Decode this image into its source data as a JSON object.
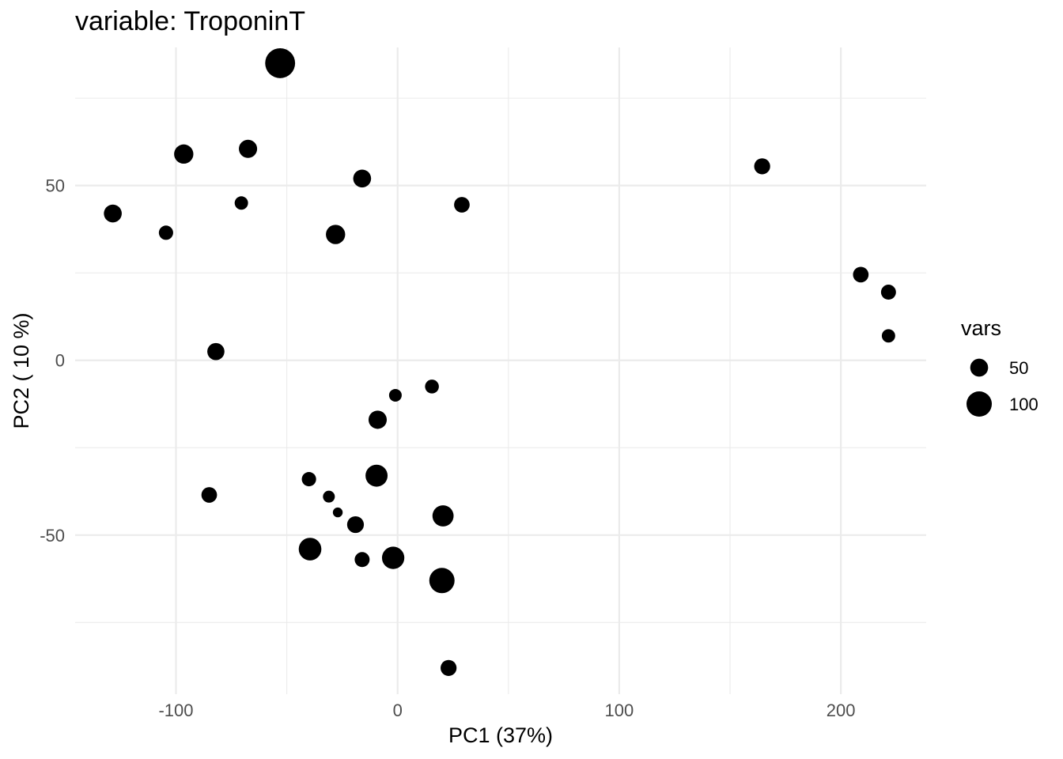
{
  "chart_data": {
    "type": "scatter",
    "title": "variable: TroponinT",
    "xlabel": "PC1 (37%)",
    "ylabel": "PC2 ( 10 %)",
    "xlim": [
      -145.5,
      238.5
    ],
    "ylim": [
      -95.5,
      89.5
    ],
    "x_ticks": [
      -100,
      0,
      100,
      200
    ],
    "x_tick_labels": [
      "-100",
      "0",
      "100",
      "200"
    ],
    "x_minor_ticks": [
      -50,
      50,
      150
    ],
    "y_ticks": [
      -50,
      0,
      50
    ],
    "y_tick_labels": [
      "-50",
      "0",
      "50"
    ],
    "y_minor_ticks": [
      -75,
      -25,
      25,
      75
    ],
    "grid": true,
    "point_color": "#000000",
    "size_variable": "vars",
    "legend": {
      "title": "vars",
      "position": "right",
      "entries": [
        {
          "label": "50",
          "value": 50
        },
        {
          "label": "100",
          "value": 100
        }
      ]
    },
    "points": [
      {
        "x": -53,
        "y": 85,
        "size": 140
      },
      {
        "x": -96.5,
        "y": 59,
        "size": 58
      },
      {
        "x": -67.5,
        "y": 60.5,
        "size": 52
      },
      {
        "x": -16,
        "y": 52,
        "size": 50
      },
      {
        "x": -128.5,
        "y": 42,
        "size": 50
      },
      {
        "x": -70.5,
        "y": 45,
        "size": 28
      },
      {
        "x": 29,
        "y": 44.5,
        "size": 38
      },
      {
        "x": -104.5,
        "y": 36.5,
        "size": 32
      },
      {
        "x": -28,
        "y": 36,
        "size": 58
      },
      {
        "x": 164.5,
        "y": 55.5,
        "size": 40
      },
      {
        "x": 209,
        "y": 24.5,
        "size": 38
      },
      {
        "x": 221.5,
        "y": 19.5,
        "size": 35
      },
      {
        "x": 221.5,
        "y": 7,
        "size": 28
      },
      {
        "x": -82,
        "y": 2.5,
        "size": 46
      },
      {
        "x": 15.5,
        "y": -7.5,
        "size": 30
      },
      {
        "x": -1,
        "y": -10,
        "size": 25
      },
      {
        "x": -9,
        "y": -17,
        "size": 52
      },
      {
        "x": -40,
        "y": -34,
        "size": 32
      },
      {
        "x": -9.5,
        "y": -33,
        "size": 76
      },
      {
        "x": -31,
        "y": -39,
        "size": 22
      },
      {
        "x": -27,
        "y": -43.5,
        "size": 15
      },
      {
        "x": -19,
        "y": -47,
        "size": 44
      },
      {
        "x": 20.5,
        "y": -44.5,
        "size": 70
      },
      {
        "x": -85,
        "y": -38.5,
        "size": 38
      },
      {
        "x": -39.5,
        "y": -54,
        "size": 80
      },
      {
        "x": -16,
        "y": -57,
        "size": 35
      },
      {
        "x": -2,
        "y": -56.5,
        "size": 78
      },
      {
        "x": 20,
        "y": -63,
        "size": 100
      },
      {
        "x": 23,
        "y": -88,
        "size": 40
      }
    ]
  }
}
